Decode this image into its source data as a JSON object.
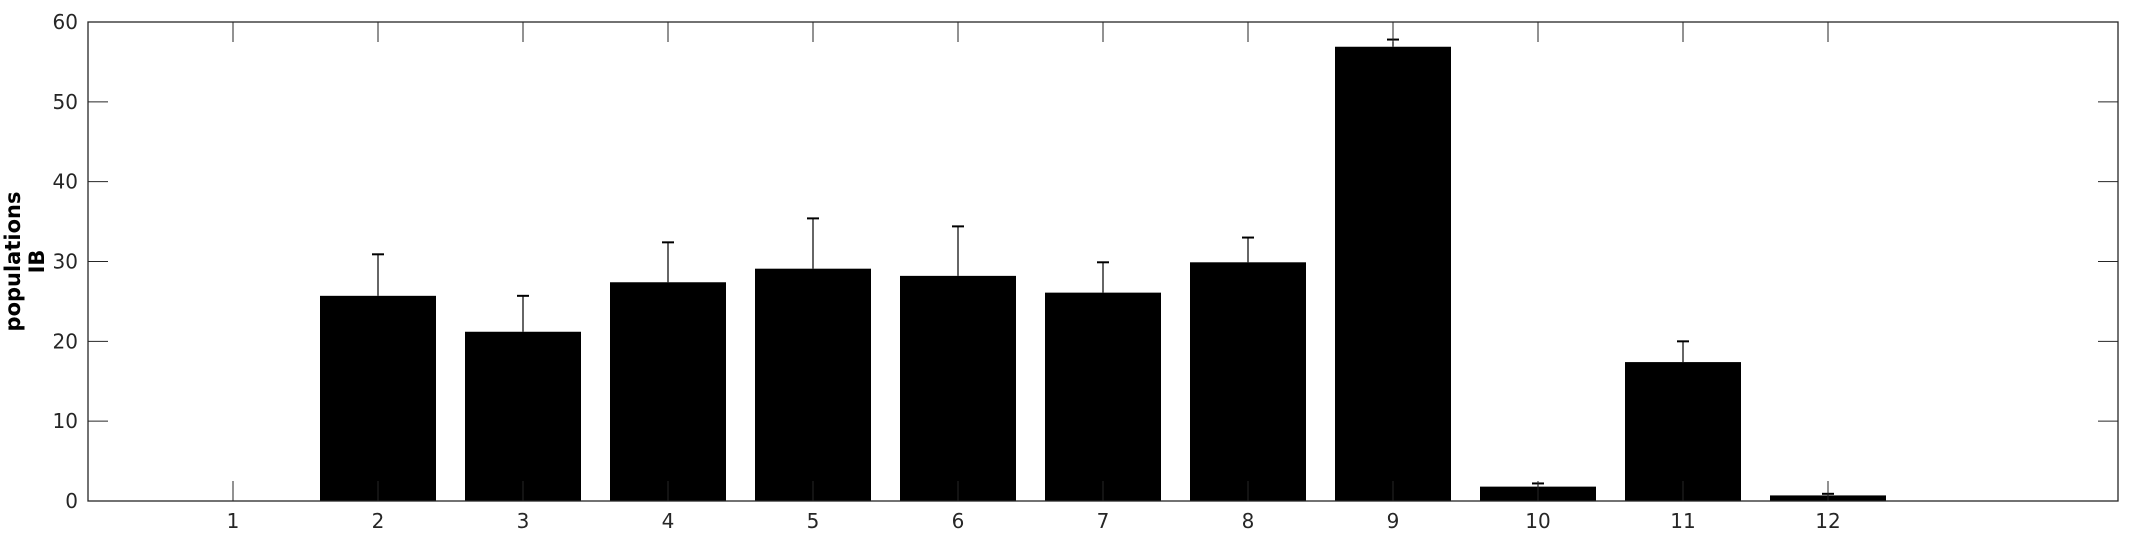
{
  "chart_data": {
    "type": "bar",
    "title": "",
    "xlabel": "",
    "ylabel_lines": [
      "populations",
      "IB"
    ],
    "categories": [
      "1",
      "2",
      "3",
      "4",
      "5",
      "6",
      "7",
      "8",
      "9",
      "10",
      "11",
      "12"
    ],
    "values": [
      0,
      25.7,
      21.2,
      27.4,
      29.1,
      28.2,
      26.1,
      29.9,
      56.9,
      1.8,
      17.4,
      0.7
    ],
    "errors": [
      0,
      5.2,
      4.5,
      5.0,
      6.3,
      6.2,
      3.8,
      3.1,
      0.9,
      0.4,
      2.6,
      0.2
    ],
    "xlim": [
      0,
      14
    ],
    "ylim": [
      0,
      60
    ],
    "yticks": [
      0,
      10,
      20,
      30,
      40,
      50,
      60
    ],
    "bar_color": "#000000",
    "grid": false,
    "legend": "none"
  }
}
